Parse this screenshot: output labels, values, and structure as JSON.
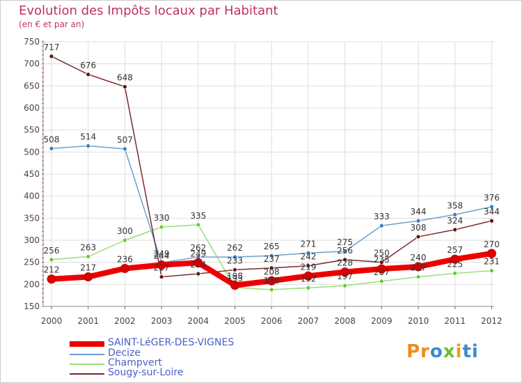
{
  "title": "Evolution des Impôts locaux par Habitant",
  "subtitle": "(en € et par an)",
  "logo_text": "Proxiti",
  "chart_data": {
    "type": "line",
    "title": "Evolution des Impôts locaux par Habitant",
    "ylabel": "(en € et par an)",
    "xlabel": "",
    "ylim": [
      150,
      750
    ],
    "yticks": [
      150,
      200,
      250,
      300,
      350,
      400,
      450,
      500,
      550,
      600,
      650,
      700,
      750
    ],
    "categories": [
      "2000",
      "2001",
      "2002",
      "2003",
      "2004",
      "2005",
      "2006",
      "2007",
      "2008",
      "2009",
      "2010",
      "2011",
      "2012"
    ],
    "grid": true,
    "series": [
      {
        "name": "SAINT-LéGER-DES-VIGNES",
        "color": "#ee0000",
        "marker_color": "#dd0000",
        "values": [
          212,
          217,
          236,
          244,
          249,
          198,
          208,
          219,
          228,
          235,
          240,
          257,
          270
        ]
      },
      {
        "name": "Decize",
        "color": "#6aa0d0",
        "marker_color": "#3a7fc0",
        "values": [
          508,
          514,
          507,
          249,
          262,
          262,
          265,
          271,
          275,
          333,
          344,
          358,
          376
        ]
      },
      {
        "name": "Champvert",
        "color": "#99dd77",
        "marker_color": "#66cc33",
        "values": [
          256,
          263,
          300,
          330,
          335,
          193,
          188,
          192,
          197,
          207,
          217,
          225,
          231
        ]
      },
      {
        "name": "Sougy-sur-Loire",
        "color": "#7a2a2a",
        "marker_color": "#5a1515",
        "values": [
          717,
          676,
          648,
          217,
          224,
          233,
          237,
          242,
          256,
          250,
          308,
          324,
          344
        ]
      }
    ]
  }
}
